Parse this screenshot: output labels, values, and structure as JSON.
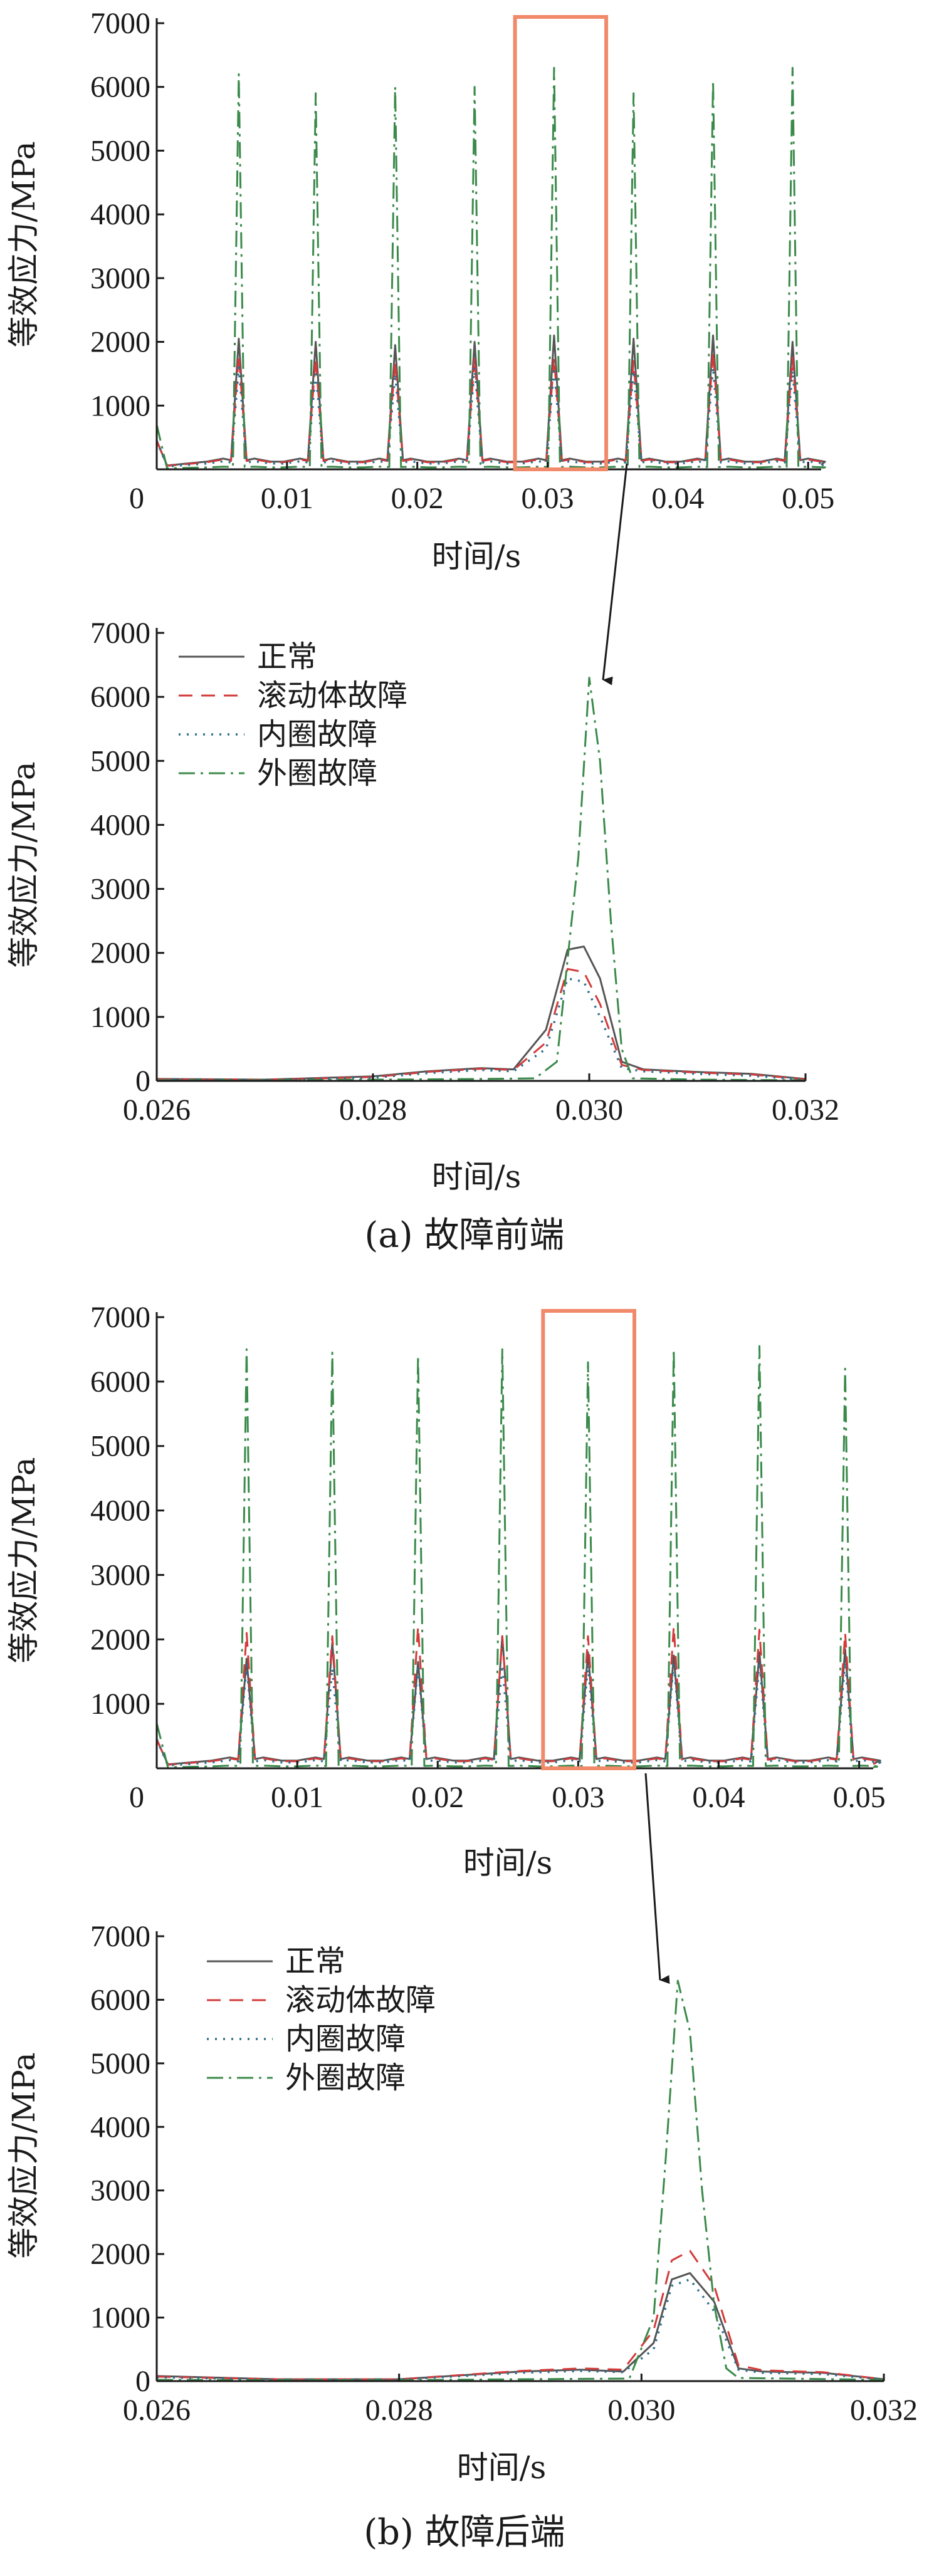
{
  "figure": {
    "colors": {
      "normal": "#555555",
      "rolling": "#d43a3a",
      "inner": "#2f6e8f",
      "outer": "#3a8a4a",
      "highlight": "#f08a6a"
    }
  },
  "chart_data": [
    {
      "id": "panel-a-overview",
      "type": "line",
      "xlabel": "时间/s",
      "ylabel": "等效应力/MPa",
      "xlim": [
        0,
        0.051
      ],
      "ylim": [
        0,
        7000
      ],
      "xticks": [
        0,
        0.01,
        0.02,
        0.03,
        0.04,
        0.05
      ],
      "xtick_labels": [
        "0",
        "0.01",
        "0.02",
        "0.03",
        "0.04",
        "0.05"
      ],
      "yticks": [
        1000,
        2000,
        3000,
        4000,
        5000,
        6000,
        7000
      ],
      "ytick_labels": [
        "1000",
        "2000",
        "3000",
        "4000",
        "5000",
        "6000",
        "7000"
      ],
      "highlight_range": [
        0.0275,
        0.0345
      ],
      "peaks_x": [
        0.0063,
        0.0122,
        0.0183,
        0.0244,
        0.0305,
        0.0366,
        0.0427,
        0.0488
      ],
      "series": [
        {
          "name": "正常",
          "peak_values": [
            2050,
            2000,
            1950,
            2000,
            2100,
            2050,
            2100,
            2000
          ]
        },
        {
          "name": "滚动体故障",
          "peak_values": [
            1800,
            1750,
            1700,
            1750,
            1750,
            1700,
            1850,
            1750
          ]
        },
        {
          "name": "内圈故障",
          "peak_values": [
            1600,
            1550,
            1500,
            1600,
            1600,
            1550,
            1600,
            1550
          ]
        },
        {
          "name": "外圈故障",
          "peak_values": [
            6200,
            5900,
            6000,
            6000,
            6300,
            5900,
            6100,
            6300
          ]
        }
      ]
    },
    {
      "id": "panel-a-zoom",
      "type": "line",
      "xlabel": "时间/s",
      "ylabel": "等效应力/MPa",
      "caption": "(a)  故障前端",
      "xlim": [
        0.026,
        0.032
      ],
      "ylim": [
        0,
        7000
      ],
      "xticks": [
        0.026,
        0.028,
        0.03,
        0.032
      ],
      "xtick_labels": [
        "0.026",
        "0.028",
        "0.030",
        "0.032"
      ],
      "yticks": [
        0,
        1000,
        2000,
        3000,
        4000,
        5000,
        6000,
        7000
      ],
      "ytick_labels": [
        "0",
        "1000",
        "2000",
        "3000",
        "4000",
        "5000",
        "6000",
        "7000"
      ],
      "legend": "top-left",
      "series": [
        {
          "name": "正常",
          "points": [
            [
              0.026,
              30
            ],
            [
              0.027,
              20
            ],
            [
              0.028,
              70
            ],
            [
              0.0285,
              150
            ],
            [
              0.029,
              200
            ],
            [
              0.0293,
              180
            ],
            [
              0.0296,
              800
            ],
            [
              0.0298,
              2050
            ],
            [
              0.02995,
              2100
            ],
            [
              0.0301,
              1600
            ],
            [
              0.0303,
              300
            ],
            [
              0.0305,
              180
            ],
            [
              0.031,
              140
            ],
            [
              0.0315,
              110
            ],
            [
              0.032,
              30
            ]
          ]
        },
        {
          "name": "滚动体故障",
          "points": [
            [
              0.026,
              25
            ],
            [
              0.027,
              20
            ],
            [
              0.028,
              60
            ],
            [
              0.0285,
              140
            ],
            [
              0.029,
              190
            ],
            [
              0.0293,
              170
            ],
            [
              0.0296,
              600
            ],
            [
              0.0298,
              1750
            ],
            [
              0.02995,
              1700
            ],
            [
              0.0301,
              1200
            ],
            [
              0.0303,
              250
            ],
            [
              0.0305,
              170
            ],
            [
              0.031,
              130
            ],
            [
              0.0315,
              100
            ],
            [
              0.032,
              25
            ]
          ]
        },
        {
          "name": "内圈故障",
          "points": [
            [
              0.026,
              20
            ],
            [
              0.027,
              15
            ],
            [
              0.028,
              50
            ],
            [
              0.0285,
              120
            ],
            [
              0.029,
              170
            ],
            [
              0.0293,
              150
            ],
            [
              0.0296,
              500
            ],
            [
              0.0298,
              1600
            ],
            [
              0.02995,
              1550
            ],
            [
              0.0301,
              1000
            ],
            [
              0.0303,
              200
            ],
            [
              0.0305,
              150
            ],
            [
              0.031,
              110
            ],
            [
              0.0315,
              80
            ],
            [
              0.032,
              20
            ]
          ]
        },
        {
          "name": "外圈故障",
          "points": [
            [
              0.026,
              10
            ],
            [
              0.027,
              10
            ],
            [
              0.028,
              20
            ],
            [
              0.029,
              30
            ],
            [
              0.0295,
              40
            ],
            [
              0.0297,
              300
            ],
            [
              0.0299,
              3500
            ],
            [
              0.03,
              6300
            ],
            [
              0.0301,
              5000
            ],
            [
              0.0302,
              2500
            ],
            [
              0.0303,
              500
            ],
            [
              0.0304,
              40
            ],
            [
              0.031,
              20
            ],
            [
              0.032,
              10
            ]
          ]
        }
      ]
    },
    {
      "id": "panel-b-overview",
      "type": "line",
      "xlabel": "时间/s",
      "ylabel": "等效应力/MPa",
      "xlim": [
        0,
        0.051
      ],
      "ylim": [
        0,
        7000
      ],
      "xticks": [
        0,
        0.01,
        0.02,
        0.03,
        0.04,
        0.05
      ],
      "xtick_labels": [
        "0",
        "0.01",
        "0.02",
        "0.03",
        "0.04",
        "0.05"
      ],
      "yticks": [
        1000,
        2000,
        3000,
        4000,
        5000,
        6000,
        7000
      ],
      "ytick_labels": [
        "1000",
        "2000",
        "3000",
        "4000",
        "5000",
        "6000",
        "7000"
      ],
      "highlight_range": [
        0.0275,
        0.034
      ],
      "peaks_x": [
        0.0064,
        0.0125,
        0.0186,
        0.0246,
        0.0307,
        0.0368,
        0.0429,
        0.049
      ],
      "series": [
        {
          "name": "正常",
          "peak_values": [
            1700,
            1950,
            1650,
            2050,
            1800,
            1750,
            1800,
            1850
          ]
        },
        {
          "name": "滚动体故障",
          "peak_values": [
            2100,
            2050,
            2200,
            2050,
            2050,
            2200,
            2150,
            2100
          ]
        },
        {
          "name": "内圈故障",
          "peak_values": [
            1600,
            1550,
            1600,
            1600,
            1600,
            1650,
            1650,
            1650
          ]
        },
        {
          "name": "外圈故障",
          "peak_values": [
            6500,
            6450,
            6400,
            6500,
            6300,
            6500,
            6550,
            6200
          ]
        }
      ]
    },
    {
      "id": "panel-b-zoom",
      "type": "line",
      "xlabel": "时间/s",
      "ylabel": "等效应力/MPa",
      "caption": "(b)  故障后端",
      "xlim": [
        0.026,
        0.032
      ],
      "ylim": [
        0,
        7000
      ],
      "xticks": [
        0.026,
        0.028,
        0.03,
        0.032
      ],
      "xtick_labels": [
        "0.026",
        "0.028",
        "0.030",
        "0.032"
      ],
      "yticks": [
        0,
        1000,
        2000,
        3000,
        4000,
        5000,
        6000,
        7000
      ],
      "ytick_labels": [
        "0",
        "1000",
        "2000",
        "3000",
        "4000",
        "5000",
        "6000",
        "7000"
      ],
      "legend": "top-left",
      "series": [
        {
          "name": "正常",
          "points": [
            [
              0.026,
              80
            ],
            [
              0.027,
              30
            ],
            [
              0.028,
              30
            ],
            [
              0.029,
              150
            ],
            [
              0.0295,
              180
            ],
            [
              0.02985,
              150
            ],
            [
              0.0301,
              600
            ],
            [
              0.03025,
              1600
            ],
            [
              0.0304,
              1700
            ],
            [
              0.0306,
              1250
            ],
            [
              0.0308,
              200
            ],
            [
              0.031,
              150
            ],
            [
              0.0315,
              130
            ],
            [
              0.032,
              30
            ]
          ]
        },
        {
          "name": "滚动体故障",
          "points": [
            [
              0.026,
              70
            ],
            [
              0.027,
              30
            ],
            [
              0.028,
              30
            ],
            [
              0.029,
              160
            ],
            [
              0.0295,
              200
            ],
            [
              0.02985,
              180
            ],
            [
              0.0301,
              800
            ],
            [
              0.03025,
              1900
            ],
            [
              0.0304,
              2050
            ],
            [
              0.0306,
              1500
            ],
            [
              0.0308,
              250
            ],
            [
              0.031,
              170
            ],
            [
              0.0315,
              140
            ],
            [
              0.032,
              30
            ]
          ]
        },
        {
          "name": "内圈故障",
          "points": [
            [
              0.026,
              60
            ],
            [
              0.027,
              25
            ],
            [
              0.028,
              25
            ],
            [
              0.029,
              130
            ],
            [
              0.0295,
              160
            ],
            [
              0.02985,
              140
            ],
            [
              0.0301,
              500
            ],
            [
              0.03025,
              1500
            ],
            [
              0.0304,
              1600
            ],
            [
              0.0306,
              1100
            ],
            [
              0.0308,
              180
            ],
            [
              0.031,
              130
            ],
            [
              0.0315,
              110
            ],
            [
              0.032,
              25
            ]
          ]
        },
        {
          "name": "外圈故障",
          "points": [
            [
              0.026,
              20
            ],
            [
              0.027,
              15
            ],
            [
              0.028,
              15
            ],
            [
              0.029,
              30
            ],
            [
              0.0299,
              40
            ],
            [
              0.0301,
              1000
            ],
            [
              0.0302,
              3500
            ],
            [
              0.0303,
              6300
            ],
            [
              0.0304,
              5500
            ],
            [
              0.0305,
              3000
            ],
            [
              0.0306,
              1200
            ],
            [
              0.0307,
              200
            ],
            [
              0.0308,
              50
            ],
            [
              0.032,
              20
            ]
          ]
        }
      ]
    }
  ]
}
